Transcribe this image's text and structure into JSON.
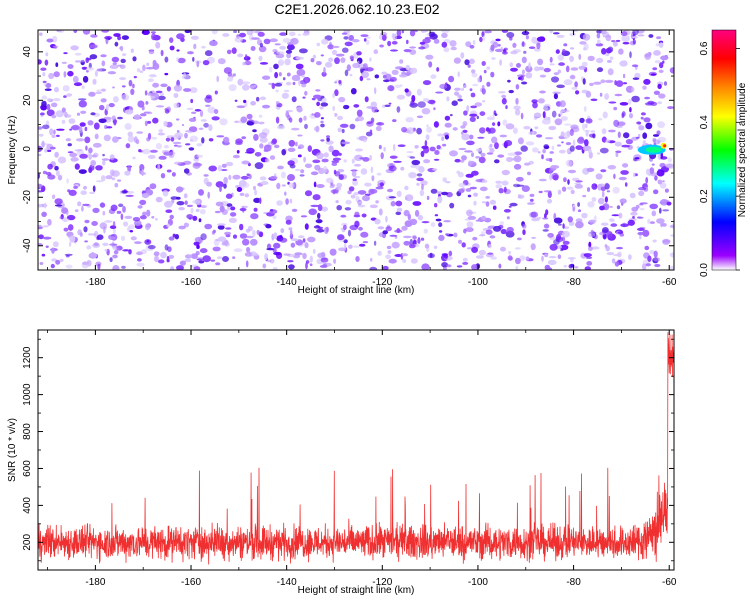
{
  "title": "C2E1.2026.062.10.23.E02",
  "chart_data": [
    {
      "type": "heatmap",
      "xlabel": "Height of straight line (km)",
      "ylabel": "Frequency (Hz)",
      "xlim": [
        -192,
        -59
      ],
      "ylim": [
        -50,
        49
      ],
      "xticks": [
        -180,
        -160,
        -140,
        -120,
        -100,
        -80,
        -60
      ],
      "yticks": [
        -40,
        -20,
        0,
        20,
        40
      ],
      "colorbar": {
        "label": "Normalized spectral amplitude",
        "range": [
          0.0,
          0.65
        ],
        "ticks": [
          0.0,
          0.2,
          0.4,
          0.6
        ],
        "colors": [
          "#ffffff",
          "#9a00ff",
          "#0000ff",
          "#00ffff",
          "#00ff00",
          "#ffff00",
          "#ff8800",
          "#ff0000",
          "#ff0080"
        ]
      },
      "description": "Dense speckled noise field of purple blobs (amplitude ~0.05-0.15) across all heights; a small high-amplitude feature near -60 km at about 0 Hz"
    },
    {
      "type": "line",
      "xlabel": "Height of straight line (km)",
      "ylabel": "SNR (10 * v/v)",
      "xlim": [
        -192,
        -59
      ],
      "ylim": [
        50,
        1350
      ],
      "xticks": [
        -180,
        -160,
        -140,
        -120,
        -100,
        -80,
        -60
      ],
      "yticks": [
        200,
        400,
        600,
        800,
        1000,
        1200
      ],
      "series": [
        {
          "name": "SNR",
          "color": "#f03030",
          "baseline": 200,
          "noise_band": [
            110,
            350
          ],
          "spike_max": 620,
          "end_value": 1340
        }
      ]
    }
  ]
}
